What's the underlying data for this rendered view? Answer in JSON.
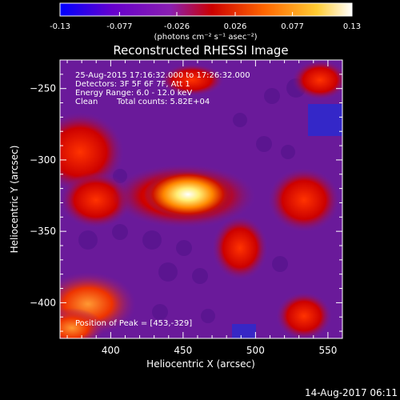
{
  "colorbar": {
    "ticks": [
      "-0.13",
      "-0.077",
      "-0.026",
      "0.026",
      "0.077",
      "0.13"
    ],
    "units_label": "(photons cm⁻² s⁻¹ asec⁻²)",
    "colors": [
      "#0000ff",
      "#6600cc",
      "#8a1fb0",
      "#cc0000",
      "#ff6600",
      "#ffcc33",
      "#ffffff"
    ]
  },
  "chart_data": {
    "type": "heatmap",
    "title": "Reconstructed RHESSI Image",
    "xlabel": "Heliocentric X (arcsec)",
    "ylabel": "Heliocentric Y (arcsec)",
    "xlim": [
      365,
      560
    ],
    "ylim": [
      -425,
      -230
    ],
    "x_ticks": [
      400,
      450,
      500,
      550
    ],
    "y_ticks": [
      -250,
      -300,
      -350,
      -400
    ],
    "x_tick_labels": [
      "400",
      "450",
      "500",
      "550"
    ],
    "y_tick_labels": [
      "−250",
      "−300",
      "−350",
      "−400"
    ],
    "value_range": [
      -0.13,
      0.13
    ],
    "peak": [
      453,
      -329
    ],
    "annotations": [
      "25-Aug-2015 17:16:32.000 to 17:26:32.000",
      "Detectors: 3F 5F 6F 7F, Att 1",
      "Energy Range: 6.0 - 12.0 keV",
      "Clean",
      "Total counts: 5.82E+04"
    ],
    "peak_label": "Position of Peak = [453,-329]"
  },
  "footer": {
    "date": "14-Aug-2017 06:11"
  }
}
